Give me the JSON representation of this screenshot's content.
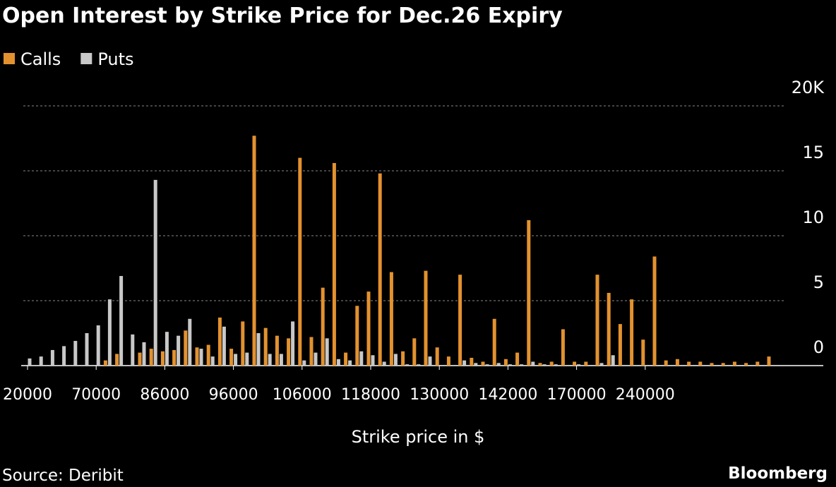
{
  "chart_data": {
    "type": "bar",
    "title": "Open Interest by Strike Price for Dec.26 Expiry",
    "x_label": "Strike price in $",
    "source": "Source: Deribit",
    "brand": "Bloomberg",
    "categories": [
      "20000",
      null,
      null,
      null,
      null,
      null,
      "70000",
      null,
      null,
      null,
      null,
      null,
      "86000",
      null,
      null,
      null,
      null,
      null,
      "96000",
      null,
      null,
      null,
      null,
      null,
      "106000",
      null,
      null,
      null,
      null,
      null,
      "118000",
      null,
      null,
      null,
      null,
      null,
      "130000",
      null,
      null,
      null,
      null,
      null,
      "142000",
      null,
      null,
      null,
      null,
      null,
      "170000",
      null,
      null,
      null,
      null,
      null,
      "240000",
      null,
      null,
      null,
      null,
      null,
      null,
      null,
      null,
      null,
      null,
      null
    ],
    "series": [
      {
        "name": "Calls",
        "color": "#e3922f",
        "values": [
          0,
          0,
          0,
          0,
          0,
          0,
          0,
          0.4,
          0.9,
          0,
          1.0,
          1.3,
          1.1,
          1.2,
          2.7,
          1.4,
          1.6,
          3.7,
          1.3,
          3.4,
          17.7,
          2.9,
          2.3,
          2.1,
          16.0,
          2.2,
          6.0,
          15.6,
          1.0,
          4.6,
          5.7,
          14.8,
          7.2,
          1.1,
          2.1,
          7.3,
          1.4,
          0.7,
          7.0,
          0.6,
          0.3,
          3.6,
          0.5,
          1.0,
          11.2,
          0.2,
          0.3,
          2.8,
          0.3,
          0.3,
          7.0,
          5.6,
          3.2,
          5.1,
          2.0,
          8.4,
          0.4,
          0.5,
          0.3,
          0.3,
          0.2,
          0.2,
          0.3,
          0.2,
          0.3,
          0.7
        ]
      },
      {
        "name": "Puts",
        "color": "#c8c8c8",
        "values": [
          0.55,
          0.7,
          1.2,
          1.5,
          1.9,
          2.5,
          3.1,
          5.1,
          6.9,
          2.4,
          1.8,
          14.3,
          2.6,
          2.3,
          3.6,
          1.3,
          0.7,
          3.0,
          0.9,
          1.0,
          2.5,
          0.9,
          0.9,
          3.4,
          0.4,
          1.0,
          2.1,
          0.5,
          0.4,
          1.1,
          0.8,
          0.3,
          0.9,
          0.1,
          0.1,
          0.7,
          0,
          0,
          0.4,
          0.2,
          0.1,
          0.2,
          0.1,
          0.1,
          0.3,
          0.1,
          0.1,
          0,
          0.1,
          0,
          0.2,
          0.8,
          0,
          0,
          0,
          0,
          0,
          0,
          0,
          0,
          0,
          0,
          0,
          0,
          0,
          0
        ]
      }
    ],
    "ylim": [
      0,
      20
    ],
    "yticks": [
      0,
      5,
      10,
      15,
      {
        "value": 20,
        "label": "20K"
      }
    ],
    "grid": true,
    "legend": "top-left"
  }
}
